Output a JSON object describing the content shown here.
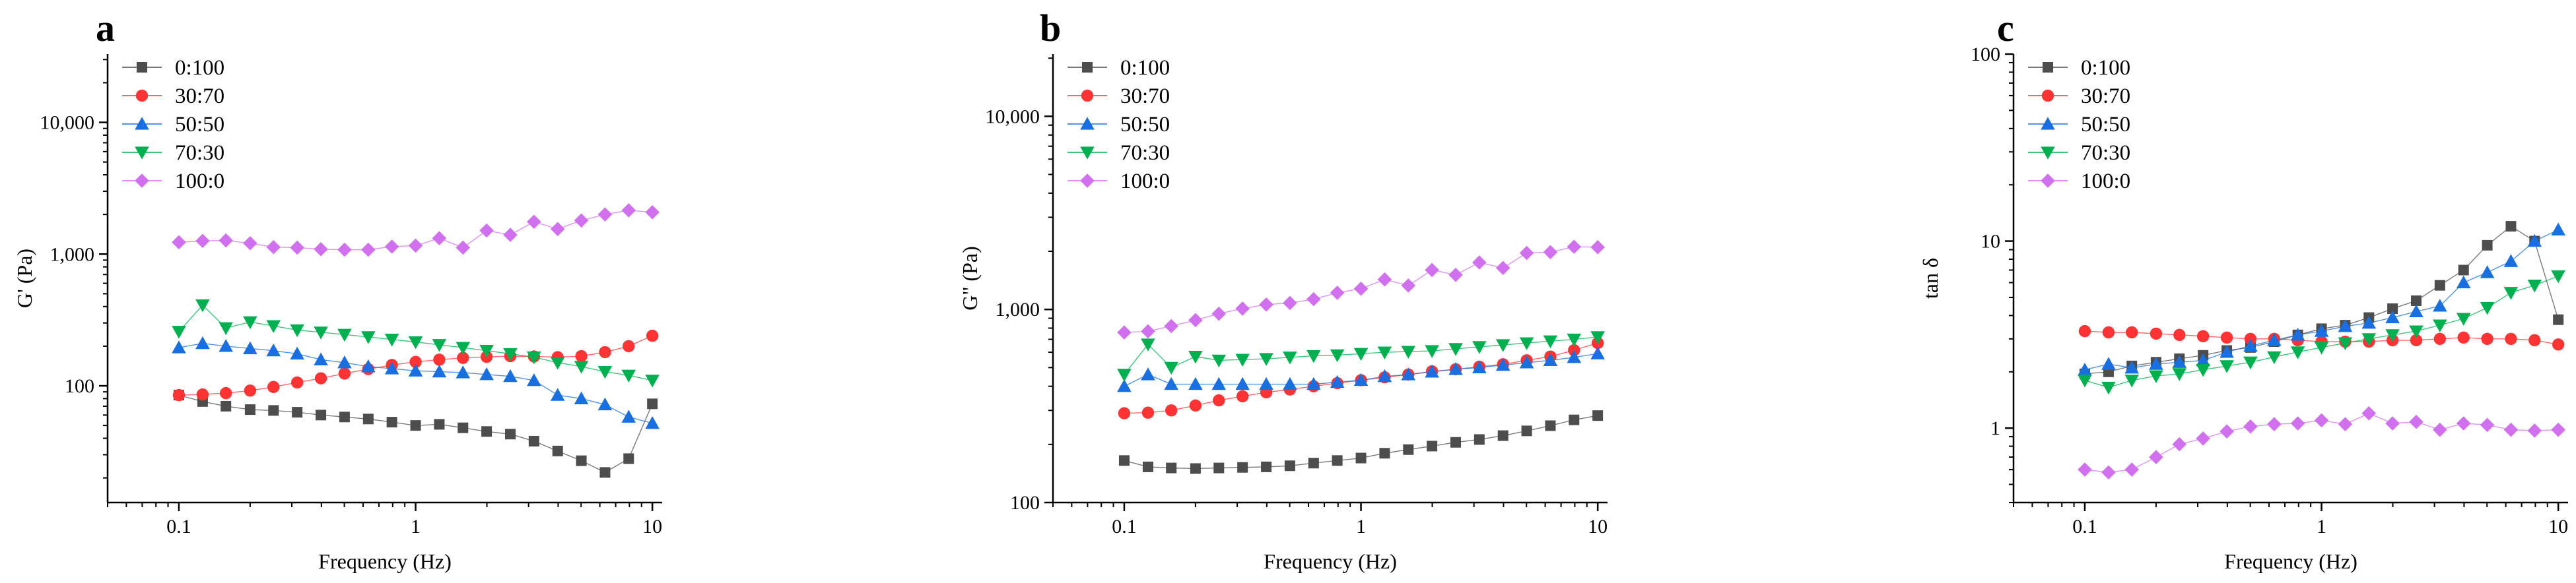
{
  "figure": {
    "panels": [
      "a",
      "b",
      "c"
    ]
  },
  "chart_data": [
    {
      "panel": "a",
      "type": "line",
      "xscale": "log",
      "yscale": "log",
      "xlabel": "Frequency (Hz)",
      "ylabel": "G' (Pa)",
      "xlim": [
        0.05,
        11
      ],
      "ylim": [
        13,
        33000
      ],
      "xticks": [
        0.1,
        1,
        10
      ],
      "xticklabels": [
        "0.1",
        "1",
        "10"
      ],
      "yticks": [
        100,
        1000,
        10000
      ],
      "yticklabels": [
        "100",
        "1,000",
        "10,000"
      ],
      "legend_position": "top-left",
      "x": [
        0.1,
        0.126,
        0.158,
        0.2,
        0.251,
        0.316,
        0.398,
        0.501,
        0.631,
        0.794,
        1.0,
        1.259,
        1.585,
        1.995,
        2.512,
        3.162,
        3.981,
        5.012,
        6.31,
        7.943,
        10.0
      ],
      "series": [
        {
          "name": "0:100",
          "color": "#4d4d4d",
          "marker": "square",
          "values": [
            85,
            76,
            70,
            66,
            65,
            63,
            60,
            58,
            56,
            53,
            50,
            51,
            48,
            45,
            43,
            38,
            32,
            27,
            22,
            28,
            73
          ]
        },
        {
          "name": "30:70",
          "color": "#ff3333",
          "marker": "circle",
          "values": [
            85,
            86,
            88,
            92,
            98,
            106,
            114,
            124,
            134,
            144,
            152,
            158,
            163,
            166,
            168,
            167,
            165,
            168,
            180,
            200,
            240
          ]
        },
        {
          "name": "50:50",
          "color": "#1a6fe0",
          "marker": "triangle-up",
          "values": [
            195,
            210,
            200,
            192,
            185,
            175,
            158,
            150,
            140,
            135,
            130,
            128,
            126,
            122,
            118,
            110,
            85,
            80,
            72,
            58,
            52
          ]
        },
        {
          "name": "70:30",
          "color": "#00b050",
          "marker": "triangle-down",
          "values": [
            258,
            410,
            275,
            305,
            285,
            265,
            255,
            245,
            235,
            225,
            215,
            205,
            195,
            185,
            175,
            165,
            150,
            140,
            128,
            120,
            110
          ]
        },
        {
          "name": "100:0",
          "color": "#d070ee",
          "marker": "diamond",
          "values": [
            1230,
            1260,
            1270,
            1210,
            1130,
            1120,
            1090,
            1080,
            1080,
            1140,
            1160,
            1320,
            1120,
            1510,
            1400,
            1760,
            1550,
            1800,
            2000,
            2150,
            2080
          ]
        }
      ]
    },
    {
      "panel": "b",
      "type": "line",
      "xscale": "log",
      "yscale": "log",
      "xlabel": "Frequency (Hz)",
      "ylabel": "G\" (Pa)",
      "xlim": [
        0.05,
        11
      ],
      "ylim": [
        100,
        21000
      ],
      "xticks": [
        0.1,
        1,
        10
      ],
      "xticklabels": [
        "0.1",
        "1",
        "10"
      ],
      "yticks": [
        100,
        1000,
        10000
      ],
      "yticklabels": [
        "100",
        "1,000",
        "10,000"
      ],
      "legend_position": "top-left",
      "x": [
        0.1,
        0.126,
        0.158,
        0.2,
        0.251,
        0.316,
        0.398,
        0.501,
        0.631,
        0.794,
        1.0,
        1.259,
        1.585,
        1.995,
        2.512,
        3.162,
        3.981,
        5.012,
        6.31,
        7.943,
        10.0
      ],
      "series": [
        {
          "name": "0:100",
          "color": "#4d4d4d",
          "marker": "square",
          "values": [
            165,
            153,
            151,
            150,
            151,
            152,
            153,
            155,
            160,
            165,
            170,
            180,
            188,
            196,
            205,
            212,
            222,
            235,
            250,
            268,
            282
          ]
        },
        {
          "name": "30:70",
          "color": "#ff3333",
          "marker": "circle",
          "values": [
            290,
            292,
            300,
            318,
            338,
            355,
            372,
            385,
            400,
            415,
            430,
            445,
            460,
            478,
            490,
            505,
            520,
            545,
            570,
            615,
            670
          ]
        },
        {
          "name": "50:50",
          "color": "#1a6fe0",
          "marker": "triangle-up",
          "values": [
            400,
            460,
            410,
            410,
            410,
            410,
            410,
            410,
            410,
            420,
            430,
            450,
            460,
            475,
            490,
            500,
            515,
            530,
            545,
            565,
            590
          ]
        },
        {
          "name": "70:30",
          "color": "#00b050",
          "marker": "triangle-down",
          "values": [
            460,
            660,
            500,
            570,
            545,
            550,
            555,
            565,
            575,
            580,
            590,
            600,
            605,
            610,
            625,
            640,
            655,
            670,
            685,
            700,
            720
          ]
        },
        {
          "name": "100:0",
          "color": "#d070ee",
          "marker": "diamond",
          "values": [
            760,
            770,
            820,
            880,
            950,
            1010,
            1060,
            1080,
            1130,
            1220,
            1280,
            1430,
            1330,
            1600,
            1510,
            1750,
            1640,
            1960,
            1980,
            2110,
            2100
          ]
        }
      ]
    },
    {
      "panel": "c",
      "type": "line",
      "xscale": "log",
      "yscale": "log",
      "xlabel": "Frequency (Hz)",
      "ylabel": "tan δ",
      "xlim": [
        0.05,
        11
      ],
      "ylim": [
        0.4,
        100
      ],
      "xticks": [
        0.1,
        1,
        10
      ],
      "xticklabels": [
        "0.1",
        "1",
        "10"
      ],
      "yticks": [
        1,
        10,
        100
      ],
      "yticklabels": [
        "1",
        "10",
        "100"
      ],
      "legend_position": "top-left",
      "x": [
        0.1,
        0.126,
        0.158,
        0.2,
        0.251,
        0.316,
        0.398,
        0.501,
        0.631,
        0.794,
        1.0,
        1.259,
        1.585,
        1.995,
        2.512,
        3.162,
        3.981,
        5.012,
        6.31,
        7.943,
        10.0
      ],
      "series": [
        {
          "name": "0:100",
          "color": "#4d4d4d",
          "marker": "square",
          "values": [
            1.95,
            2.0,
            2.15,
            2.25,
            2.35,
            2.45,
            2.6,
            2.7,
            2.9,
            3.15,
            3.4,
            3.55,
            3.9,
            4.35,
            4.8,
            5.8,
            7.0,
            9.5,
            12.0,
            10.0,
            3.8
          ]
        },
        {
          "name": "30:70",
          "color": "#ff3333",
          "marker": "circle",
          "values": [
            3.3,
            3.25,
            3.25,
            3.2,
            3.15,
            3.1,
            3.05,
            3.0,
            3.0,
            2.95,
            2.9,
            2.9,
            2.9,
            2.95,
            2.95,
            3.0,
            3.05,
            3.0,
            3.0,
            2.95,
            2.8
          ]
        },
        {
          "name": "50:50",
          "color": "#1a6fe0",
          "marker": "triangle-up",
          "values": [
            2.05,
            2.2,
            2.1,
            2.2,
            2.25,
            2.3,
            2.55,
            2.75,
            2.95,
            3.15,
            3.3,
            3.5,
            3.65,
            3.9,
            4.2,
            4.5,
            6.0,
            6.8,
            7.8,
            10.0,
            11.5
          ]
        },
        {
          "name": "70:30",
          "color": "#00b050",
          "marker": "triangle-down",
          "values": [
            1.8,
            1.65,
            1.8,
            1.9,
            1.95,
            2.05,
            2.15,
            2.25,
            2.4,
            2.55,
            2.7,
            2.85,
            3.0,
            3.15,
            3.3,
            3.55,
            3.85,
            4.4,
            5.3,
            5.8,
            6.5
          ]
        },
        {
          "name": "100:0",
          "color": "#d070ee",
          "marker": "diamond",
          "values": [
            0.6,
            0.58,
            0.6,
            0.7,
            0.82,
            0.88,
            0.96,
            1.02,
            1.05,
            1.06,
            1.1,
            1.05,
            1.2,
            1.06,
            1.08,
            0.98,
            1.06,
            1.04,
            0.98,
            0.97,
            0.98
          ]
        }
      ]
    }
  ]
}
